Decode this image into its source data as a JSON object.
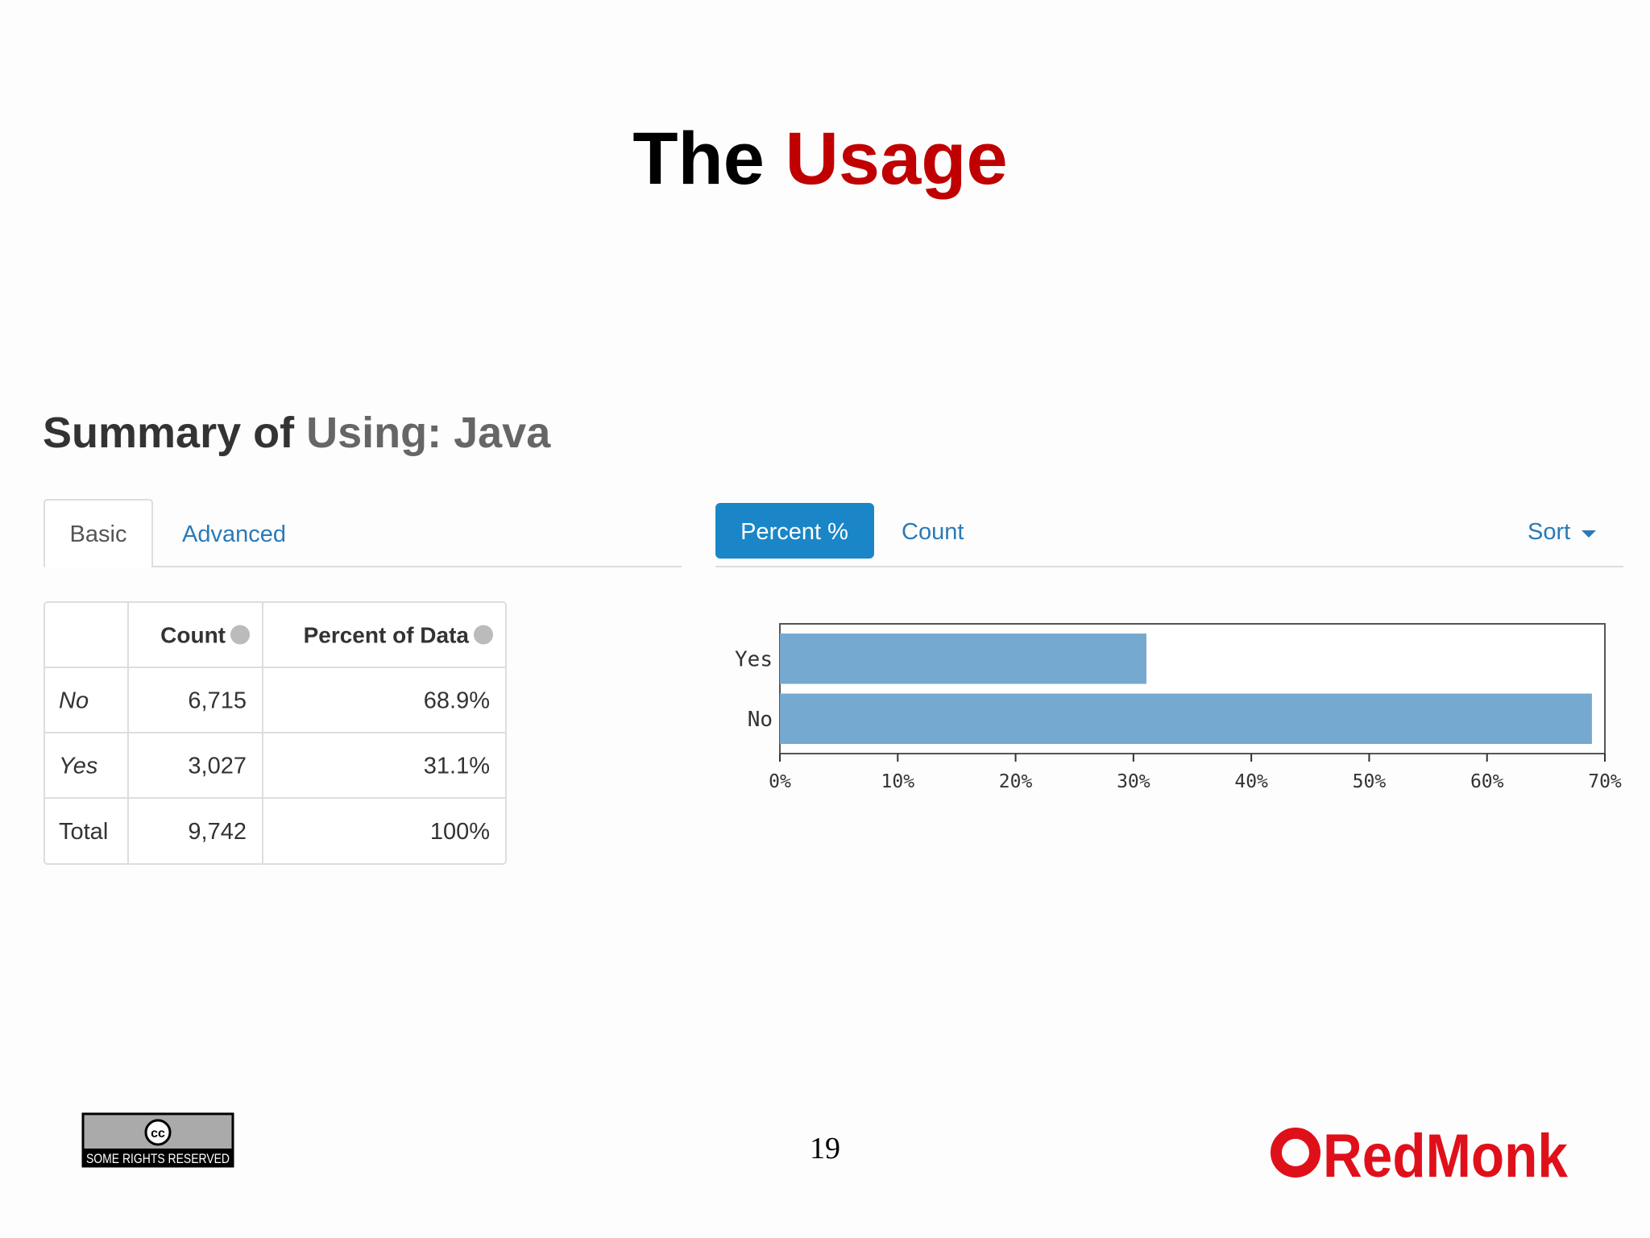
{
  "slide": {
    "title_part1": "The",
    "title_part2": "Usage",
    "page_number": "19",
    "license": {
      "icon": "cc",
      "text": "SOME RIGHTS RESERVED"
    },
    "logo": "RedMonk"
  },
  "summary": {
    "title_part1": "Summary of",
    "title_part2": "Using: Java",
    "tabs": [
      "Basic",
      "Advanced"
    ],
    "table": {
      "headers": [
        "Count",
        "Percent of Data"
      ],
      "rows": [
        [
          "No",
          "6,715",
          "68.9%"
        ],
        [
          "Yes",
          "3,027",
          "31.1%"
        ],
        [
          "Total",
          "9,742",
          "100%"
        ]
      ]
    },
    "chart_controls": {
      "active": "Percent %",
      "other": "Count",
      "sort": "Sort"
    }
  },
  "chart_data": {
    "type": "hbar",
    "categories": [
      "Yes",
      "No"
    ],
    "values": [
      31.1,
      68.9
    ],
    "color": "#76a9d0",
    "xlim": [
      0,
      70
    ],
    "xticks": [
      {
        "value": 0,
        "label": "0%"
      },
      {
        "value": 10,
        "label": "10%"
      },
      {
        "value": 20,
        "label": "20%"
      },
      {
        "value": 30,
        "label": "30%"
      },
      {
        "value": 40,
        "label": "40%"
      },
      {
        "value": 50,
        "label": "50%"
      },
      {
        "value": 60,
        "label": "60%"
      },
      {
        "value": 70,
        "label": "70%"
      }
    ]
  }
}
